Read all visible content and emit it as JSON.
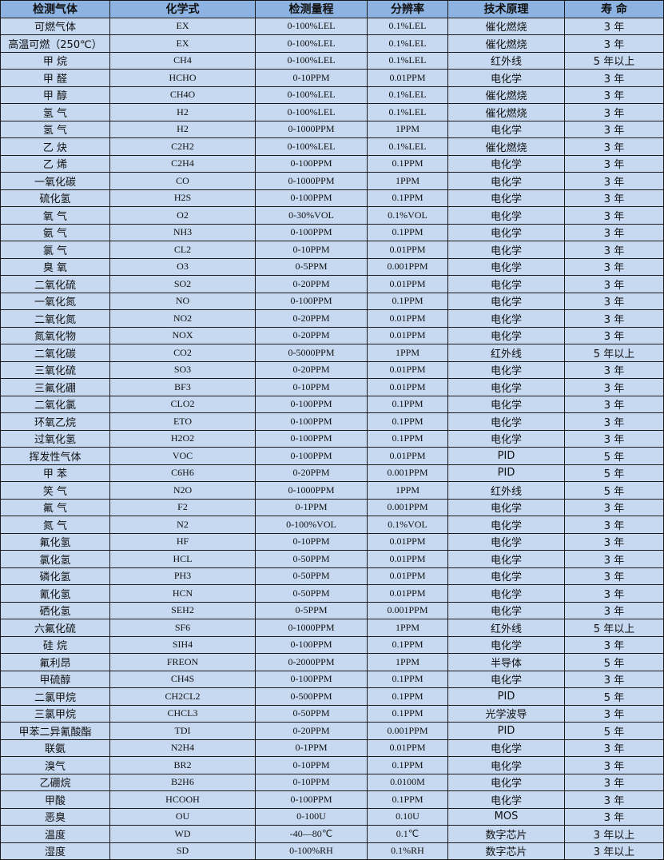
{
  "colors": {
    "header_bg": "#8db3e2",
    "cell_bg": "#c6d9f1",
    "border": "#1a1a1a"
  },
  "headers": [
    "检测气体",
    "化学式",
    "检测量程",
    "分辨率",
    "技术原理",
    "寿 命"
  ],
  "rows": [
    [
      "可燃气体",
      "EX",
      "0-100%LEL",
      "0.1%LEL",
      "催化燃烧",
      "3 年"
    ],
    [
      "高温可燃（250℃）",
      "EX",
      "0-100%LEL",
      "0.1%LEL",
      "催化燃烧",
      "3 年"
    ],
    [
      "甲 烷",
      "CH4",
      "0-100%LEL",
      "0.1%LEL",
      "红外线",
      "5 年以上"
    ],
    [
      "甲 醛",
      "HCHO",
      "0-10PPM",
      "0.01PPM",
      "电化学",
      "3 年"
    ],
    [
      "甲 醇",
      "CH4O",
      "0-100%LEL",
      "0.1%LEL",
      "催化燃烧",
      "3 年"
    ],
    [
      "氢 气",
      "H2",
      "0-100%LEL",
      "0.1%LEL",
      "催化燃烧",
      "3 年"
    ],
    [
      "氢 气",
      "H2",
      "0-1000PPM",
      "1PPM",
      "电化学",
      "3 年"
    ],
    [
      "乙 炔",
      "C2H2",
      "0-100%LEL",
      "0.1%LEL",
      "催化燃烧",
      "3 年"
    ],
    [
      "乙 烯",
      "C2H4",
      "0-100PPM",
      "0.1PPM",
      "电化学",
      "3 年"
    ],
    [
      "一氧化碳",
      "CO",
      "0-1000PPM",
      "1PPM",
      "电化学",
      "3 年"
    ],
    [
      "硫化氢",
      "H2S",
      "0-100PPM",
      "0.1PPM",
      "电化学",
      "3 年"
    ],
    [
      "氧 气",
      "O2",
      "0-30%VOL",
      "0.1%VOL",
      "电化学",
      "3 年"
    ],
    [
      "氨 气",
      "NH3",
      "0-100PPM",
      "0.1PPM",
      "电化学",
      "3 年"
    ],
    [
      "氯 气",
      "CL2",
      "0-10PPM",
      "0.01PPM",
      "电化学",
      "3 年"
    ],
    [
      "臭 氧",
      "O3",
      "0-5PPM",
      "0.001PPM",
      "电化学",
      "3 年"
    ],
    [
      "二氧化硫",
      "SO2",
      "0-20PPM",
      "0.01PPM",
      "电化学",
      "3 年"
    ],
    [
      "一氧化氮",
      "NO",
      "0-100PPM",
      "0.1PPM",
      "电化学",
      "3 年"
    ],
    [
      "二氧化氮",
      "NO2",
      "0-20PPM",
      "0.01PPM",
      "电化学",
      "3 年"
    ],
    [
      "氮氧化物",
      "NOX",
      "0-20PPM",
      "0.01PPM",
      "电化学",
      "3 年"
    ],
    [
      "二氧化碳",
      "CO2",
      "0-5000PPM",
      "1PPM",
      "红外线",
      "5 年以上"
    ],
    [
      "三氧化硫",
      "SO3",
      "0-20PPM",
      "0.01PPM",
      "电化学",
      "3 年"
    ],
    [
      "三氟化硼",
      "BF3",
      "0-10PPM",
      "0.01PPM",
      "电化学",
      "3 年"
    ],
    [
      "二氧化氯",
      "CLO2",
      "0-100PPM",
      "0.1PPM",
      "电化学",
      "3 年"
    ],
    [
      "环氧乙烷",
      "ETO",
      "0-100PPM",
      "0.1PPM",
      "电化学",
      "3 年"
    ],
    [
      "过氧化氢",
      "H2O2",
      "0-100PPM",
      "0.1PPM",
      "电化学",
      "3 年"
    ],
    [
      "挥发性气体",
      "VOC",
      "0-100PPM",
      "0.01PPM",
      "PID",
      "5 年"
    ],
    [
      "甲 苯",
      "C6H6",
      "0-20PPM",
      "0.001PPM",
      "PID",
      "5 年"
    ],
    [
      "笑 气",
      "N2O",
      "0-1000PPM",
      "1PPM",
      "红外线",
      "5 年"
    ],
    [
      "氟 气",
      "F2",
      "0-1PPM",
      "0.001PPM",
      "电化学",
      "3 年"
    ],
    [
      "氮 气",
      "N2",
      "0-100%VOL",
      "0.1%VOL",
      "电化学",
      "3 年"
    ],
    [
      "氟化氢",
      "HF",
      "0-10PPM",
      "0.01PPM",
      "电化学",
      "3 年"
    ],
    [
      "氯化氢",
      "HCL",
      "0-50PPM",
      "0.01PPM",
      "电化学",
      "3 年"
    ],
    [
      "磷化氢",
      "PH3",
      "0-50PPM",
      "0.01PPM",
      "电化学",
      "3 年"
    ],
    [
      "氰化氢",
      "HCN",
      "0-50PPM",
      "0.01PPM",
      "电化学",
      "3 年"
    ],
    [
      "硒化氢",
      "SEH2",
      "0-5PPM",
      "0.001PPM",
      "电化学",
      "3 年"
    ],
    [
      "六氟化硫",
      "SF6",
      "0-1000PPM",
      "1PPM",
      "红外线",
      "5 年以上"
    ],
    [
      "硅 烷",
      "SIH4",
      "0-100PPM",
      "0.1PPM",
      "电化学",
      "3 年"
    ],
    [
      "氟利昂",
      "FREON",
      "0-2000PPM",
      "1PPM",
      "半导体",
      "5 年"
    ],
    [
      "甲硫醇",
      "CH4S",
      "0-100PPM",
      "0.1PPM",
      "电化学",
      "3 年"
    ],
    [
      "二氯甲烷",
      "CH2CL2",
      "0-500PPM",
      "0.1PPM",
      "PID",
      "5 年"
    ],
    [
      "三氯甲烷",
      "CHCL3",
      "0-50PPM",
      "0.1PPM",
      "光学波导",
      "3 年"
    ],
    [
      "甲苯二异氰酸酯",
      "TDI",
      "0-20PPM",
      "0.001PPM",
      "PID",
      "5 年"
    ],
    [
      "联氨",
      "N2H4",
      "0-1PPM",
      "0.01PPM",
      "电化学",
      "3 年"
    ],
    [
      "溴气",
      "BR2",
      "0-10PPM",
      "0.1PPM",
      "电化学",
      "3 年"
    ],
    [
      "乙硼烷",
      "B2H6",
      "0-10PPM",
      "0.0100M",
      "电化学",
      "3 年"
    ],
    [
      "甲酸",
      "HCOOH",
      "0-100PPM",
      "0.1PPM",
      "电化学",
      "3 年"
    ],
    [
      "恶臭",
      "OU",
      "0-100U",
      "0.10U",
      "MOS",
      "3 年"
    ],
    [
      "温度",
      "WD",
      "-40—80℃",
      "0.1℃",
      "数字芯片",
      "3 年以上"
    ],
    [
      "湿度",
      "SD",
      "0-100%RH",
      "0.1%RH",
      "数字芯片",
      "3 年以上"
    ]
  ]
}
